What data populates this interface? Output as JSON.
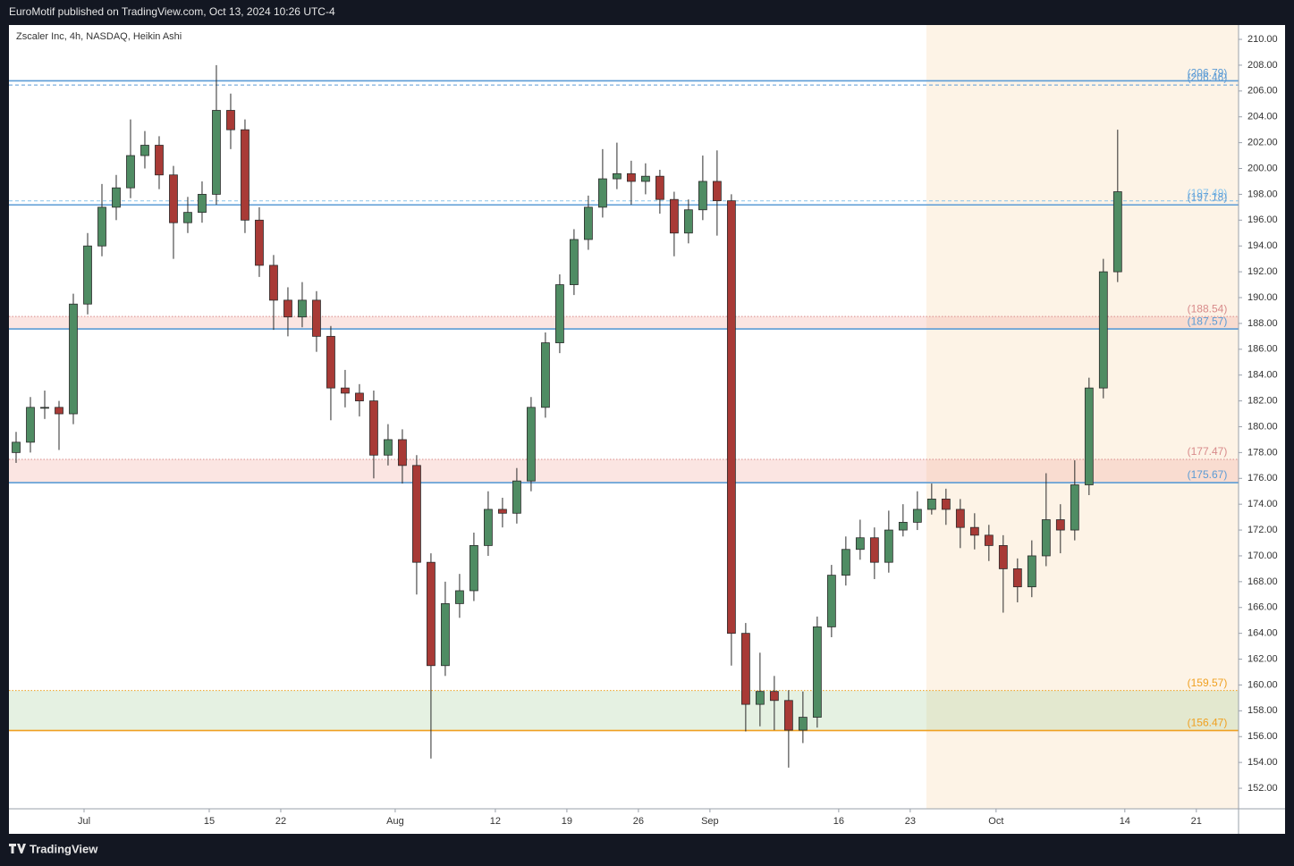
{
  "header": {
    "text": "EuroMotif published on TradingView.com, Oct 13, 2024 10:26 UTC-4"
  },
  "footer": {
    "brand": "TradingView"
  },
  "chart_data": {
    "type": "candlestick",
    "title": "Zscaler Inc, 4h, NASDAQ, Heikin Ashi",
    "x": [
      1,
      3,
      5,
      7,
      9,
      11,
      13,
      15,
      17,
      19,
      21,
      23,
      25,
      27,
      29,
      31,
      33,
      35,
      37,
      39,
      41,
      43,
      45,
      47,
      49,
      51,
      53,
      55,
      57,
      59,
      61,
      63,
      65,
      67,
      69,
      71,
      73,
      75,
      77,
      79,
      81,
      83,
      85,
      87,
      89,
      91,
      93,
      95,
      97,
      99,
      101,
      103,
      105,
      107,
      109,
      111,
      113,
      115,
      117,
      119,
      121,
      123,
      125,
      127,
      129,
      131,
      133,
      135,
      137,
      139,
      141,
      143,
      145,
      147,
      149,
      151,
      153,
      155
    ],
    "open": [
      178,
      178.8,
      181.5,
      181.5,
      181,
      189.5,
      194,
      197,
      198.5,
      201,
      201.8,
      199.5,
      195.8,
      196.6,
      198,
      204.5,
      203,
      196,
      192.5,
      189.8,
      188.5,
      189.8,
      187,
      183,
      182.6,
      182,
      177.8,
      179,
      177,
      169.5,
      161.5,
      166.3,
      167.3,
      170.8,
      173.6,
      173.3,
      175.8,
      181.5,
      186.5,
      191,
      194.5,
      197,
      199.2,
      199.6,
      199,
      199.4,
      197.6,
      195,
      196.8,
      199,
      197.5,
      164,
      158.5,
      159.5,
      158.8,
      156.5,
      157.5,
      164.5,
      168.5,
      170.5,
      171.4,
      169.5,
      172,
      172.6,
      173.6,
      174.4,
      173.6,
      172.2,
      171.6,
      170.8,
      169,
      167.6,
      170,
      172.8,
      172,
      175.5,
      183,
      192
    ],
    "high": [
      179.6,
      182.3,
      182.8,
      182,
      190.3,
      195,
      198.8,
      199.5,
      203.8,
      202.9,
      202.5,
      200.2,
      197.8,
      199,
      208,
      205.8,
      203.8,
      197,
      193.3,
      190.8,
      191.2,
      190.5,
      187.8,
      184.4,
      183.3,
      182.8,
      180.2,
      179.8,
      177.8,
      170.2,
      168,
      168.6,
      171.8,
      175,
      174.5,
      176.8,
      182.3,
      187.3,
      191.8,
      195.3,
      197.9,
      201.5,
      202,
      200.6,
      200.4,
      199.9,
      198.2,
      197.6,
      201,
      201.4,
      198,
      164.8,
      162.5,
      160.7,
      159.6,
      159.5,
      165.3,
      169.3,
      171.5,
      172.8,
      172.2,
      173.5,
      174,
      175,
      175.6,
      175.2,
      174.4,
      173.3,
      172.4,
      171.6,
      169.8,
      171.2,
      176.4,
      174,
      177.4,
      183.8,
      193,
      203
    ],
    "low": [
      177.2,
      178,
      180.6,
      178.2,
      180.2,
      188.7,
      193.2,
      196,
      197.7,
      200,
      198.4,
      193,
      195,
      195.8,
      197.2,
      201.5,
      195,
      191.6,
      187.5,
      187,
      187.7,
      185.8,
      180.5,
      181.5,
      180.8,
      176,
      177,
      175.6,
      167,
      154.3,
      160.7,
      165.2,
      166.5,
      170,
      172.2,
      172.5,
      175,
      180.7,
      185.7,
      190.2,
      193.7,
      196.2,
      198.4,
      197.2,
      198,
      196.5,
      193.2,
      194.2,
      196,
      194.8,
      161.5,
      156.4,
      156.8,
      156.5,
      153.6,
      155.5,
      156.7,
      163.7,
      167.7,
      169.7,
      168.2,
      168.7,
      171.5,
      172,
      173.2,
      172.4,
      170.6,
      170.5,
      169.6,
      165.6,
      166.4,
      166.8,
      169.2,
      170.2,
      171.2,
      174.7,
      182.2,
      191.2
    ],
    "close": [
      178.8,
      181.5,
      181.5,
      181,
      189.5,
      194,
      197,
      198.5,
      201,
      201.8,
      199.5,
      195.8,
      196.6,
      198,
      204.5,
      203,
      196,
      192.5,
      189.8,
      188.5,
      189.8,
      187,
      183,
      182.6,
      182,
      177.8,
      179,
      177,
      169.5,
      161.5,
      166.3,
      167.3,
      170.8,
      173.6,
      173.3,
      175.8,
      181.5,
      186.5,
      191,
      194.5,
      197,
      199.2,
      199.6,
      199,
      199.4,
      197.6,
      195,
      196.8,
      199,
      197.5,
      164,
      158.5,
      159.5,
      158.8,
      156.5,
      157.5,
      164.5,
      168.5,
      170.5,
      171.4,
      169.5,
      172,
      172.6,
      173.6,
      174.4,
      173.6,
      172.2,
      171.6,
      170.8,
      169,
      167.6,
      170,
      172.8,
      172,
      175.5,
      183,
      192,
      198.2
    ],
    "up_color": "#4f8c63",
    "down_color": "#a83a36",
    "border_color": "#2b2b2b",
    "xlim": [
      0,
      171.9
    ],
    "ylim": [
      150.41,
      211.11
    ],
    "xticks": [
      {
        "value": 10.5,
        "label": "Jul"
      },
      {
        "value": 28,
        "label": "15"
      },
      {
        "value": 38,
        "label": "22"
      },
      {
        "value": 54,
        "label": "Aug"
      },
      {
        "value": 68,
        "label": "12"
      },
      {
        "value": 78,
        "label": "19"
      },
      {
        "value": 88,
        "label": "26"
      },
      {
        "value": 98,
        "label": "Sep"
      },
      {
        "value": 116,
        "label": "16"
      },
      {
        "value": 126,
        "label": "23"
      },
      {
        "value": 138,
        "label": "Oct"
      },
      {
        "value": 156,
        "label": "14"
      },
      {
        "value": 166,
        "label": "21"
      }
    ],
    "yticks": [
      {
        "value": 152,
        "label": "152.00"
      },
      {
        "value": 154,
        "label": "154.00"
      },
      {
        "value": 156,
        "label": "156.00"
      },
      {
        "value": 158,
        "label": "158.00"
      },
      {
        "value": 160,
        "label": "160.00"
      },
      {
        "value": 162,
        "label": "162.00"
      },
      {
        "value": 164,
        "label": "164.00"
      },
      {
        "value": 166,
        "label": "166.00"
      },
      {
        "value": 168,
        "label": "168.00"
      },
      {
        "value": 170,
        "label": "170.00"
      },
      {
        "value": 172,
        "label": "172.00"
      },
      {
        "value": 174,
        "label": "174.00"
      },
      {
        "value": 176,
        "label": "176.00"
      },
      {
        "value": 178,
        "label": "178.00"
      },
      {
        "value": 180,
        "label": "180.00"
      },
      {
        "value": 182,
        "label": "182.00"
      },
      {
        "value": 184,
        "label": "184.00"
      },
      {
        "value": 186,
        "label": "186.00"
      },
      {
        "value": 188,
        "label": "188.00"
      },
      {
        "value": 190,
        "label": "190.00"
      },
      {
        "value": 192,
        "label": "192.00"
      },
      {
        "value": 194,
        "label": "194.00"
      },
      {
        "value": 196,
        "label": "196.00"
      },
      {
        "value": 198,
        "label": "198.00"
      },
      {
        "value": 200,
        "label": "200.00"
      },
      {
        "value": 202,
        "label": "202.00"
      },
      {
        "value": 204,
        "label": "204.00"
      },
      {
        "value": 206,
        "label": "206.00"
      },
      {
        "value": 208,
        "label": "208.00"
      },
      {
        "value": 210,
        "label": "210.00"
      }
    ],
    "grid": false,
    "shaded_range_x": [
      128.25,
      171.9
    ],
    "shaded_color": "#fdf3e6",
    "zones": [
      {
        "from": 187.57,
        "to": 188.54,
        "color": "rgba(240,160,150,0.28)"
      },
      {
        "from": 175.67,
        "to": 177.47,
        "color": "rgba(240,160,150,0.28)"
      },
      {
        "from": 156.47,
        "to": 159.57,
        "color": "rgba(150,200,140,0.25)"
      }
    ],
    "levels": [
      {
        "value": 206.79,
        "label": "(206.79)",
        "color": "#5b9bd5",
        "style": "solid"
      },
      {
        "value": 206.46,
        "label": "(206.46)",
        "color": "#5b9bd5",
        "style": "dashed"
      },
      {
        "value": 197.49,
        "label": "(197.49)",
        "color": "#88c4ec",
        "style": "dashed"
      },
      {
        "value": 197.18,
        "label": "(197.18)",
        "color": "#5b9bd5",
        "style": "solid"
      },
      {
        "value": 188.54,
        "label": "(188.54)",
        "color": "#d88a8a",
        "style": "dotted"
      },
      {
        "value": 187.57,
        "label": "(187.57)",
        "color": "#5b9bd5",
        "style": "solid"
      },
      {
        "value": 177.47,
        "label": "(177.47)",
        "color": "#d88a8a",
        "style": "dotted"
      },
      {
        "value": 175.67,
        "label": "(175.67)",
        "color": "#5b9bd5",
        "style": "solid"
      },
      {
        "value": 159.57,
        "label": "(159.57)",
        "color": "#f0a020",
        "style": "dotted"
      },
      {
        "value": 156.47,
        "label": "(156.47)",
        "color": "#f0a020",
        "style": "solid"
      }
    ]
  }
}
